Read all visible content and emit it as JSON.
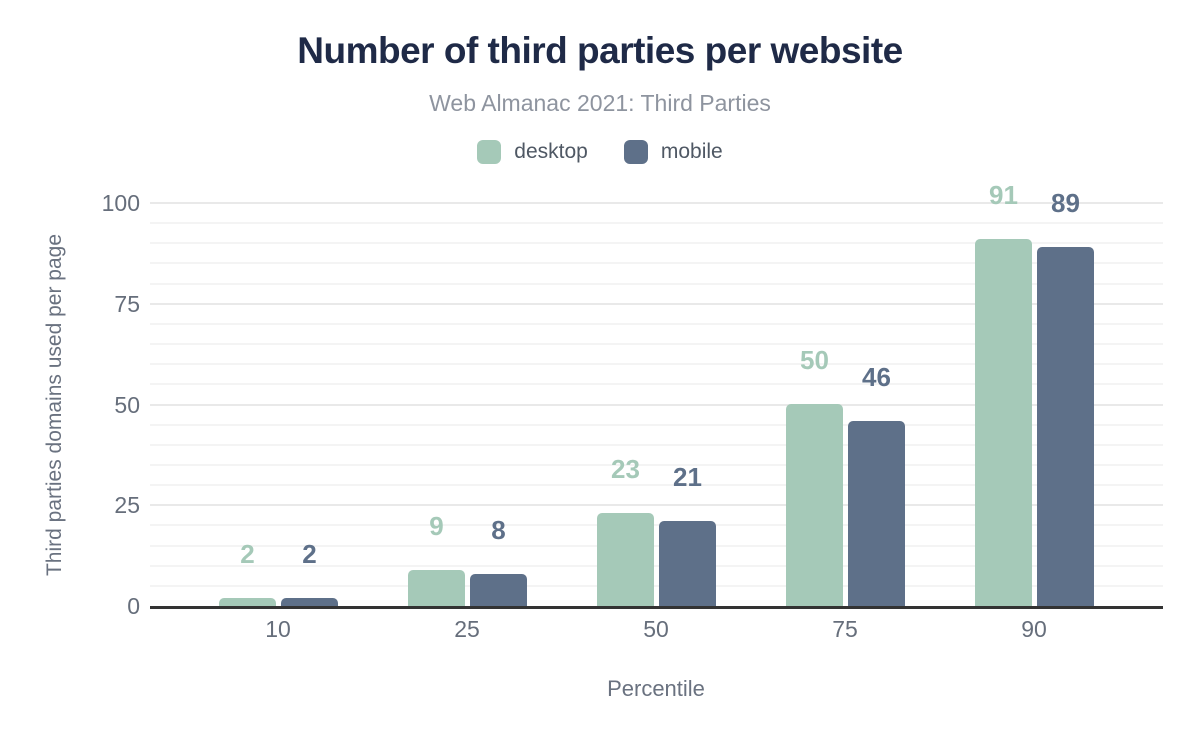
{
  "chart_data": {
    "type": "bar",
    "title": "Number of third parties per website",
    "subtitle": "Web Almanac 2021: Third Parties",
    "xlabel": "Percentile",
    "ylabel": "Third parties domains used per page",
    "categories": [
      "10",
      "25",
      "50",
      "75",
      "90"
    ],
    "series": [
      {
        "name": "desktop",
        "color": "#a5c9b8",
        "values": [
          2,
          9,
          23,
          50,
          91
        ]
      },
      {
        "name": "mobile",
        "color": "#5e7089",
        "values": [
          2,
          8,
          21,
          46,
          89
        ]
      }
    ],
    "ylim": [
      0,
      100
    ],
    "yticks": [
      0,
      25,
      50,
      75,
      100
    ],
    "minor_grid_step": 5,
    "grid": "on",
    "legend_position": "top-center"
  },
  "colors": {
    "title": "#1f2a47",
    "subtitle": "#8e949f",
    "legend_text": "#4f5864",
    "axis_text": "#666e7b",
    "grid_major": "#e9e9e9",
    "grid_minor": "#f4f4f4",
    "axis_line": "#333333",
    "background": "#ffffff"
  }
}
